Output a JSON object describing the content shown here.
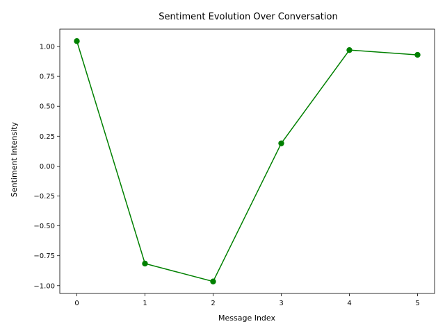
{
  "chart_data": {
    "type": "line",
    "title": "Sentiment Evolution Over Conversation",
    "xlabel": "Message Index",
    "ylabel": "Sentiment Intensity",
    "x": [
      0,
      1,
      2,
      3,
      4,
      5
    ],
    "series": [
      {
        "values": [
          1.045,
          -0.815,
          -0.965,
          0.19,
          0.97,
          0.93
        ],
        "color": "#008000"
      }
    ],
    "xticks": [
      0,
      1,
      2,
      3,
      4,
      5
    ],
    "xtick_labels": [
      "0",
      "1",
      "2",
      "3",
      "4",
      "5"
    ],
    "yticks": [
      -1.0,
      -0.75,
      -0.5,
      -0.25,
      0.0,
      0.25,
      0.5,
      0.75,
      1.0
    ],
    "ytick_labels": [
      "−1.00",
      "−0.75",
      "−0.50",
      "−0.25",
      "0.00",
      "0.25",
      "0.50",
      "0.75",
      "1.00"
    ],
    "xlim": [
      -0.25,
      5.25
    ],
    "ylim": [
      -1.065,
      1.145
    ],
    "grid": false,
    "legend": "none"
  }
}
